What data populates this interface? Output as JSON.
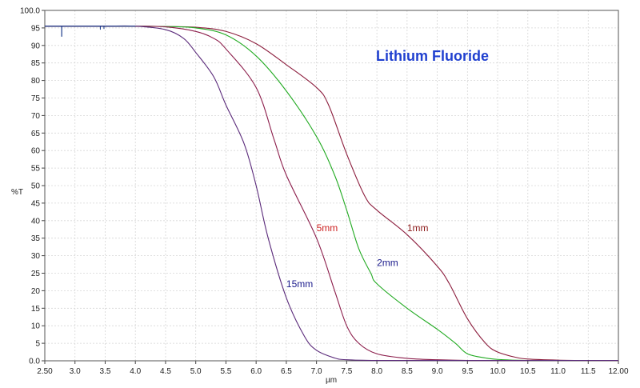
{
  "chart_data": {
    "type": "line",
    "title": "Lithium Fluoride",
    "xlabel": "µm",
    "ylabel": "%T",
    "xlim": [
      2.5,
      12.0
    ],
    "ylim": [
      0,
      100
    ],
    "grid": true,
    "x_ticks": [
      "2.50",
      "3.0",
      "3.5",
      "4.0",
      "4.5",
      "5.0",
      "5.5",
      "6.0",
      "6.5",
      "7.0",
      "7.5",
      "8.0",
      "8.5",
      "9.0",
      "9.5",
      "10.0",
      "10.5",
      "11.0",
      "11.5",
      "12.00"
    ],
    "y_ticks": [
      "0.0",
      "5",
      "10",
      "15",
      "20",
      "25",
      "30",
      "35",
      "40",
      "45",
      "50",
      "55",
      "60",
      "65",
      "70",
      "75",
      "80",
      "85",
      "90",
      "95",
      "100.0"
    ],
    "colors": {
      "1mm": "#8b1c3c",
      "2mm": "#22aa22",
      "5mm": "#8b1c4a",
      "15mm": "#5a2a7a",
      "title": "#1f3fcf",
      "baseline": "#1a3a8a"
    },
    "series": [
      {
        "name": "1mm",
        "label_color": "#8b1a1a",
        "x": [
          2.5,
          3.0,
          3.5,
          4.0,
          4.5,
          5.0,
          5.5,
          6.0,
          6.5,
          7.0,
          7.2,
          7.5,
          7.8,
          8.0,
          8.5,
          9.0,
          9.2,
          9.5,
          9.8,
          10.0,
          10.3,
          10.5,
          11.0,
          11.5,
          12.0
        ],
        "y": [
          95.5,
          95.5,
          95.5,
          95.5,
          95.4,
          95.2,
          94.0,
          90.5,
          84.5,
          78.0,
          73.0,
          59.0,
          47.0,
          43.0,
          36.0,
          27.0,
          22.0,
          12.0,
          5.0,
          2.5,
          1.0,
          0.5,
          0.2,
          0.1,
          0.1
        ]
      },
      {
        "name": "2mm",
        "label_color": "#1a1a8b",
        "x": [
          2.5,
          3.0,
          3.5,
          4.0,
          4.5,
          5.0,
          5.5,
          6.0,
          6.5,
          7.0,
          7.3,
          7.5,
          7.7,
          7.9,
          8.0,
          8.5,
          9.0,
          9.3,
          9.5,
          9.8,
          10.0,
          10.5,
          11.0,
          11.5,
          12.0
        ],
        "y": [
          95.5,
          95.5,
          95.5,
          95.5,
          95.4,
          95.0,
          93.0,
          87.0,
          77.0,
          64.0,
          53.0,
          43.0,
          32.0,
          25.0,
          22.0,
          15.0,
          9.0,
          5.0,
          2.0,
          0.8,
          0.4,
          0.1,
          0.1,
          0.1,
          0.1
        ]
      },
      {
        "name": "5mm",
        "label_color": "#cc2222",
        "x": [
          2.5,
          3.0,
          3.5,
          4.0,
          4.5,
          5.0,
          5.3,
          5.5,
          6.0,
          6.3,
          6.5,
          7.0,
          7.3,
          7.5,
          7.7,
          8.0,
          8.5,
          9.0,
          9.5,
          10.0,
          11.0,
          12.0
        ],
        "y": [
          95.5,
          95.5,
          95.5,
          95.5,
          95.3,
          94.0,
          92.0,
          89.0,
          78.0,
          63.0,
          53.0,
          35.0,
          20.0,
          10.0,
          5.0,
          2.0,
          0.7,
          0.3,
          0.1,
          0.1,
          0.1,
          0.1
        ]
      },
      {
        "name": "15mm",
        "label_color": "#1a1a8b",
        "x": [
          2.5,
          3.0,
          3.5,
          4.0,
          4.5,
          4.8,
          5.0,
          5.3,
          5.5,
          5.8,
          6.0,
          6.2,
          6.5,
          6.8,
          7.0,
          7.3,
          7.5,
          8.0,
          9.0,
          10.0,
          12.0
        ],
        "y": [
          95.5,
          95.5,
          95.5,
          95.5,
          94.5,
          92.0,
          88.0,
          81.0,
          73.0,
          62.0,
          50.0,
          35.0,
          18.0,
          7.0,
          3.0,
          0.8,
          0.3,
          0.1,
          0.1,
          0.1,
          0.1
        ]
      }
    ],
    "annotations": [
      {
        "text": "1mm",
        "x": 8.5,
        "y": 37,
        "color": "#8b1a1a"
      },
      {
        "text": "2mm",
        "x": 8.0,
        "y": 27,
        "color": "#1a1a8b"
      },
      {
        "text": "5mm",
        "x": 7.0,
        "y": 37,
        "color": "#cc2222"
      },
      {
        "text": "15mm",
        "x": 6.5,
        "y": 21,
        "color": "#1a1a8b"
      }
    ]
  }
}
